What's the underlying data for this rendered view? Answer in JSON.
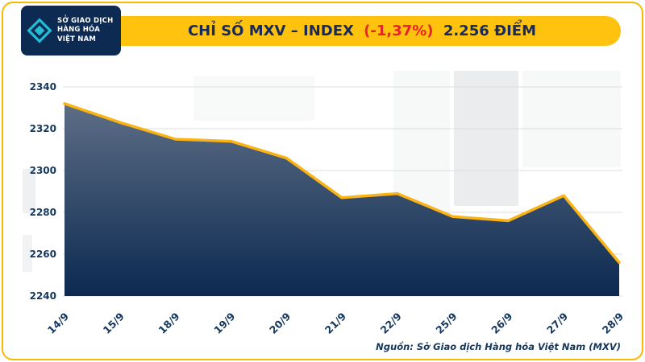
{
  "logo": {
    "line1": "SỞ GIAO DỊCH",
    "line2": "HÀNG HÓA",
    "line3": "VIỆT NAM"
  },
  "banner": {
    "prefix": "CHỈ SỐ MXV – INDEX",
    "change": "(-1,37%)",
    "suffix": "2.256 ĐIỂM"
  },
  "chart_data": {
    "type": "area",
    "title": "CHỈ SỐ MXV – INDEX (-1,37%) 2.256 ĐIỂM",
    "categories": [
      "14/9",
      "15/9",
      "18/9",
      "19/9",
      "20/9",
      "21/9",
      "22/9",
      "25/9",
      "26/9",
      "27/9",
      "28/9"
    ],
    "values": [
      2332,
      2323,
      2315,
      2314,
      2306,
      2287,
      2289,
      2278,
      2276,
      2288,
      2256
    ],
    "xlabel": "",
    "ylabel": "",
    "ylim": [
      2240,
      2340
    ],
    "yticks": [
      2240,
      2260,
      2280,
      2300,
      2320,
      2340
    ],
    "grid": true,
    "legend_position": "none",
    "line_color": "#F9B314",
    "area_top_color": "#5D6E86",
    "area_bottom_color": "#0C2950"
  },
  "footer": {
    "source": "Nguồn: Sở Giao dịch Hàng hóa Việt Nam (MXV)"
  },
  "colors": {
    "banner_bg": "#FFC20E",
    "banner_text": "#182A5A",
    "change_text": "#E8232A",
    "logo_bg": "#0D2A52",
    "logo_accent": "#24BCD4",
    "frame_border": "#F6BA00",
    "axis_text": "#14375E"
  }
}
